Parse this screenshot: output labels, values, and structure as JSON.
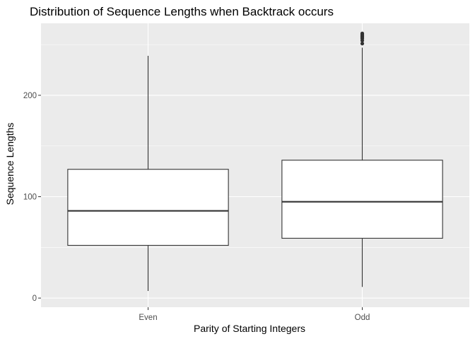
{
  "colors": {
    "panel": "#ebebeb",
    "grid_major": "#ffffff",
    "box_fill": "#ffffff",
    "box_line": "#333333",
    "tick": "#333333"
  },
  "chart_data": {
    "type": "boxplot",
    "title": "Distribution of Sequence Lengths when Backtrack occurs",
    "xlabel": "Parity of Starting Integers",
    "ylabel": "Sequence Lengths",
    "categories": [
      "Even",
      "Odd"
    ],
    "ylim": [
      -9,
      271
    ],
    "yticks": [
      0,
      100,
      200
    ],
    "grid": true,
    "boxes": [
      {
        "category": "Even",
        "whisker_low": 7,
        "q1": 52,
        "median": 86,
        "q3": 127,
        "whisker_high": 239,
        "outliers": []
      },
      {
        "category": "Odd",
        "whisker_low": 11,
        "q1": 59,
        "median": 95,
        "q3": 136,
        "whisker_high": 247,
        "outliers": [
          251,
          254,
          256,
          257,
          258,
          259,
          260,
          261
        ]
      }
    ]
  }
}
